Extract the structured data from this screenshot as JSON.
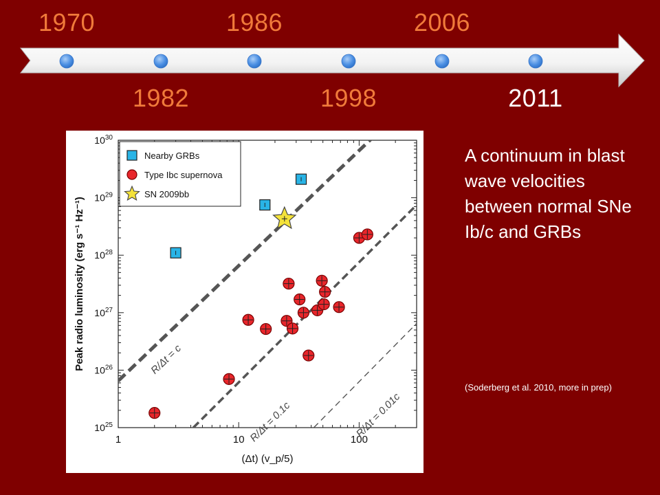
{
  "timeline": {
    "top_years": [
      "1970",
      "1986",
      "2006"
    ],
    "bottom_years": [
      "1982",
      "1998",
      "2011"
    ],
    "current_year": "2011",
    "year_color": "#f07a3a",
    "current_color": "#ffffff"
  },
  "caption": "A continuum in blast wave velocities between normal SNe Ib/c and GRBs",
  "reference": "(Soderberg et al. 2010, more in prep)",
  "colors": {
    "background": "#7f0000",
    "grb": "#29b4e6",
    "sn": "#e8262b",
    "sn2009bb": "#f4e23a"
  },
  "chart_data": {
    "type": "scatter",
    "xlabel": "(Δt) (v_p/5)",
    "ylabel": "Peak radio luminosity (erg s⁻¹ Hz⁻¹)",
    "xscale": "log",
    "yscale": "log",
    "xlim": [
      1,
      300
    ],
    "ylim": [
      1e+25,
      1e+30
    ],
    "x_ticks": [
      "1",
      "10",
      "100"
    ],
    "y_ticks": [
      {
        "base": "10",
        "exp": "25"
      },
      {
        "base": "10",
        "exp": "26"
      },
      {
        "base": "10",
        "exp": "27"
      },
      {
        "base": "10",
        "exp": "28"
      },
      {
        "base": "10",
        "exp": "29"
      },
      {
        "base": "10",
        "exp": "30"
      }
    ],
    "legend": {
      "placement": "top-left",
      "entries": [
        "Nearby GRBs",
        "Type Ibc supernova",
        "SN 2009bb"
      ]
    },
    "series": [
      {
        "name": "Nearby GRBs",
        "marker": "square",
        "points": [
          [
            3.0,
            1.1e+28
          ],
          [
            16.5,
            7.5e+28
          ],
          [
            33.0,
            2.1e+29
          ]
        ]
      },
      {
        "name": "Type Ibc supernova",
        "marker": "circle",
        "points": [
          [
            2.0,
            1.8e+25
          ],
          [
            8.3,
            7e+25
          ],
          [
            12.0,
            7.5e+26
          ],
          [
            16.8,
            5.2e+26
          ],
          [
            26.0,
            3.2e+27
          ],
          [
            25.0,
            7.2e+26
          ],
          [
            28.0,
            5.3e+26
          ],
          [
            32.0,
            1.7e+27
          ],
          [
            34.5,
            1e+27
          ],
          [
            38.0,
            1.8e+26
          ],
          [
            45.0,
            1.1e+27
          ],
          [
            49.0,
            3.6e+27
          ],
          [
            51.0,
            1.4e+27
          ],
          [
            52.0,
            2.3e+27
          ],
          [
            68.0,
            1.25e+27
          ],
          [
            100.0,
            2e+28
          ],
          [
            117.0,
            2.3e+28
          ]
        ]
      },
      {
        "name": "SN 2009bb",
        "marker": "star",
        "points": [
          [
            24.0,
            4.3e+28
          ]
        ]
      }
    ],
    "lines": [
      {
        "label": "R/Δt = c",
        "style": "thick-dashed",
        "x0": 1,
        "y0": 6.5e+25,
        "x1": 300,
        "y1": 6e+30
      },
      {
        "label": "R/Δt = 0.1c",
        "style": "dashed",
        "x0": 4.2,
        "y0": 1e+25,
        "x1": 300,
        "y1": 7.5e+28
      },
      {
        "label": "R/Δt = 0.01c",
        "style": "thin-dashed",
        "x0": 42,
        "y0": 1e+25,
        "x1": 300,
        "y1": 6.5e+26
      }
    ]
  }
}
